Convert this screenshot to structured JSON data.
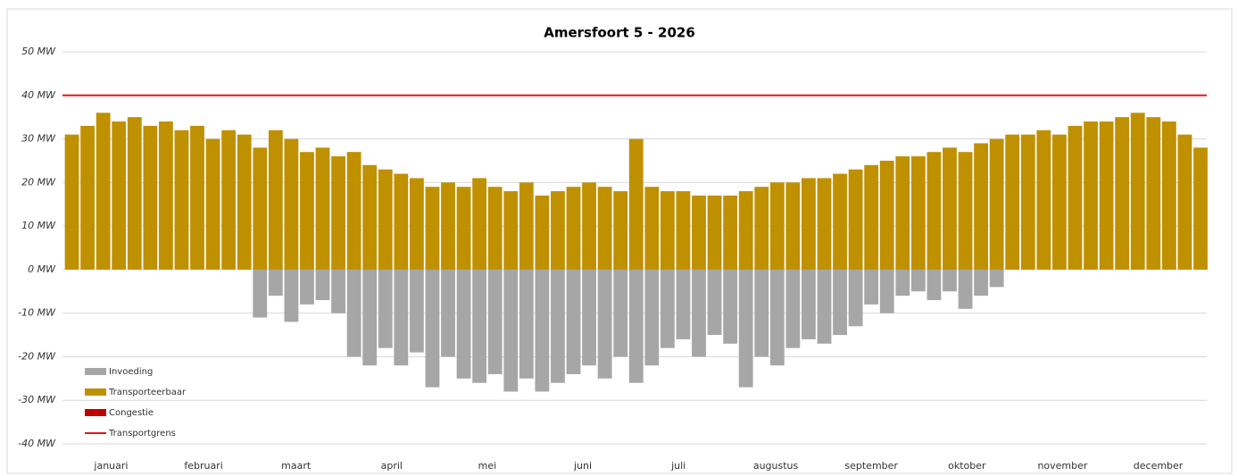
{
  "chart_data": {
    "type": "bar",
    "title": "Amersfoort 5 - 2026",
    "x": [
      3,
      8,
      13,
      18,
      23,
      28,
      33,
      38,
      43,
      48,
      53,
      58,
      63,
      68,
      73,
      78,
      83,
      88,
      93,
      98,
      103,
      108,
      113,
      118,
      123,
      128,
      133,
      138,
      143,
      148,
      153,
      158,
      163,
      168,
      173,
      178,
      183,
      188,
      193,
      198,
      203,
      208,
      213,
      218,
      223,
      228,
      233,
      238,
      243,
      248,
      253,
      258,
      263,
      268,
      273,
      278,
      283,
      288,
      293,
      298,
      303,
      308,
      313,
      318,
      323,
      328,
      333,
      338,
      343,
      348,
      353,
      358,
      363
    ],
    "xlim": [
      0,
      365
    ],
    "xticks": [
      {
        "value": 15.5,
        "label": "januari"
      },
      {
        "value": 45,
        "label": "februari"
      },
      {
        "value": 74.5,
        "label": "maart"
      },
      {
        "value": 105,
        "label": "april"
      },
      {
        "value": 135.5,
        "label": "mei"
      },
      {
        "value": 166,
        "label": "juni"
      },
      {
        "value": 196.5,
        "label": "juli"
      },
      {
        "value": 227.5,
        "label": "augustus"
      },
      {
        "value": 258,
        "label": "september"
      },
      {
        "value": 288.5,
        "label": "oktober"
      },
      {
        "value": 319,
        "label": "november"
      },
      {
        "value": 349.5,
        "label": "december"
      }
    ],
    "ylim": [
      -40,
      50
    ],
    "yticks": [
      {
        "value": -40,
        "label": "-40 MW"
      },
      {
        "value": -30,
        "label": "-30 MW"
      },
      {
        "value": -20,
        "label": "-20 MW"
      },
      {
        "value": -10,
        "label": "-10 MW"
      },
      {
        "value": 0,
        "label": "0 MW"
      },
      {
        "value": 10,
        "label": "10 MW"
      },
      {
        "value": 20,
        "label": "20 MW"
      },
      {
        "value": 30,
        "label": "30 MW"
      },
      {
        "value": 40,
        "label": "40 MW"
      },
      {
        "value": 50,
        "label": "50 MW"
      }
    ],
    "grid": true,
    "legend": "bottom-left",
    "series": [
      {
        "name": "Invoeding",
        "color": "#a6a6a6",
        "values": [
          0,
          0,
          0,
          0,
          0,
          0,
          0,
          0,
          0,
          0,
          0,
          0,
          -11,
          -6,
          -12,
          -8,
          -7,
          -10,
          -20,
          -22,
          -18,
          -22,
          -19,
          -27,
          -20,
          -25,
          -26,
          -24,
          -28,
          -25,
          -28,
          -26,
          -24,
          -22,
          -25,
          -20,
          -26,
          -22,
          -18,
          -16,
          -20,
          -15,
          -17,
          -27,
          -20,
          -22,
          -18,
          -16,
          -17,
          -15,
          -13,
          -8,
          -10,
          -6,
          -5,
          -7,
          -5,
          -9,
          -6,
          -4,
          0,
          0,
          0,
          0,
          0,
          0,
          0,
          0,
          0,
          0,
          0,
          0,
          0
        ]
      },
      {
        "name": "Transporteerbaar",
        "color": "#bf9000",
        "values": [
          31,
          33,
          36,
          34,
          35,
          33,
          34,
          32,
          33,
          30,
          32,
          31,
          28,
          32,
          30,
          27,
          28,
          26,
          27,
          24,
          23,
          22,
          21,
          19,
          20,
          19,
          21,
          19,
          18,
          20,
          17,
          18,
          19,
          20,
          19,
          18,
          30,
          19,
          18,
          18,
          17,
          17,
          17,
          18,
          19,
          20,
          20,
          21,
          21,
          22,
          23,
          24,
          25,
          26,
          26,
          27,
          28,
          27,
          29,
          30,
          31,
          31,
          32,
          31,
          33,
          34,
          34,
          35,
          36,
          35,
          34,
          31,
          28
        ]
      },
      {
        "name": "Congestie",
        "color": "#c00000",
        "values": [
          0,
          0,
          0,
          0,
          0,
          0,
          0,
          0,
          0,
          0,
          0,
          0,
          0,
          0,
          0,
          0,
          0,
          0,
          0,
          0,
          0,
          0,
          0,
          0,
          0,
          0,
          0,
          0,
          0,
          0,
          0,
          0,
          0,
          0,
          0,
          0,
          0,
          0,
          0,
          0,
          0,
          0,
          0,
          0,
          0,
          0,
          0,
          0,
          0,
          0,
          0,
          0,
          0,
          0,
          0,
          0,
          0,
          0,
          0,
          0,
          0,
          0,
          0,
          0,
          0,
          0,
          0,
          0,
          0,
          0,
          0,
          0,
          0
        ]
      }
    ],
    "limit": {
      "name": "Transportgrens",
      "color": "#e3161d",
      "value": 40
    }
  }
}
